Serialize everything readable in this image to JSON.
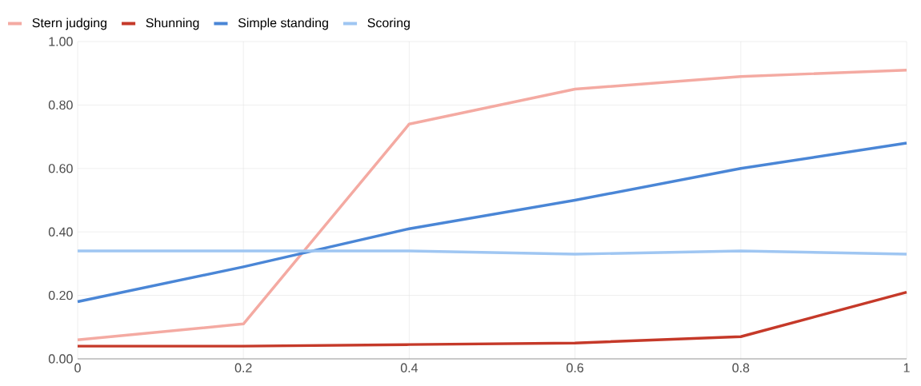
{
  "chart_data": {
    "type": "line",
    "x": [
      0,
      0.2,
      0.4,
      0.6,
      0.8,
      1
    ],
    "series": [
      {
        "name": "Stern judging",
        "color": "#f4aaa2",
        "values": [
          0.06,
          0.11,
          0.74,
          0.85,
          0.89,
          0.91
        ]
      },
      {
        "name": "Shunning",
        "color": "#c53929",
        "values": [
          0.04,
          0.04,
          0.045,
          0.05,
          0.07,
          0.21
        ]
      },
      {
        "name": "Simple standing",
        "color": "#4a86d6",
        "values": [
          0.18,
          0.29,
          0.41,
          0.5,
          0.6,
          0.68
        ]
      },
      {
        "name": "Scoring",
        "color": "#9fc6f2",
        "values": [
          0.34,
          0.34,
          0.34,
          0.33,
          0.34,
          0.33
        ]
      }
    ],
    "xlim": [
      0,
      1
    ],
    "ylim": [
      0,
      1
    ],
    "xticks": [
      0,
      0.2,
      0.4,
      0.6,
      0.8,
      1
    ],
    "yticks": [
      {
        "value": 0,
        "label": "0.00"
      },
      {
        "value": 0.2,
        "label": "0.20"
      },
      {
        "value": 0.4,
        "label": "0.40"
      },
      {
        "value": 0.6,
        "label": "0.60"
      },
      {
        "value": 0.8,
        "label": "0.80"
      },
      {
        "value": 1,
        "label": "1.00"
      }
    ],
    "grid": true,
    "legend": "top left",
    "marker": "none",
    "line_style": "solid"
  }
}
